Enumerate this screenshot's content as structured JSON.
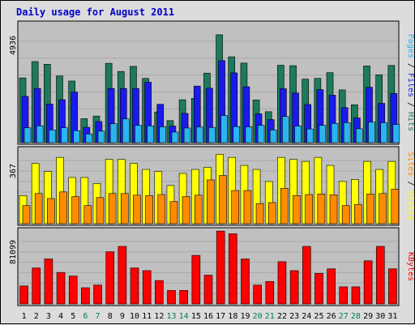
{
  "title": "Daily usage for August 2011",
  "colors": {
    "background": "#c0c0c0",
    "title": "#0000cc",
    "hits": "#1d7a5a",
    "files": "#1a1aee",
    "pages": "#2ab4f0",
    "visits": "#ffff00",
    "sites": "#ff8c00",
    "kbytes": "#ff0000",
    "weekday": "#000000",
    "weekend": "#00805a"
  },
  "chart_data": [
    {
      "type": "bar",
      "name": "hits-files-pages",
      "ymax_label": "4936",
      "ylim": [
        0,
        4936
      ],
      "categories": [
        "1",
        "2",
        "3",
        "4",
        "5",
        "6",
        "7",
        "8",
        "9",
        "10",
        "11",
        "12",
        "13",
        "14",
        "15",
        "16",
        "17",
        "18",
        "19",
        "20",
        "21",
        "22",
        "23",
        "24",
        "25",
        "26",
        "27",
        "28",
        "29",
        "30",
        "31"
      ],
      "weekend_days": [
        "6",
        "7",
        "13",
        "14",
        "20",
        "21",
        "27",
        "28"
      ],
      "series": [
        {
          "name": "Hits",
          "values": [
            2700,
            3380,
            3270,
            2780,
            2570,
            1000,
            1110,
            3310,
            2970,
            3180,
            2680,
            1280,
            920,
            1790,
            1850,
            2900,
            4500,
            3580,
            3320,
            1780,
            1290,
            3230,
            3210,
            2650,
            2680,
            2920,
            2200,
            1580,
            3200,
            2830,
            3220
          ]
        },
        {
          "name": "Files",
          "values": [
            1930,
            2260,
            1610,
            1790,
            2110,
            640,
            880,
            2260,
            2260,
            2260,
            2520,
            1600,
            690,
            1220,
            2360,
            2270,
            3420,
            2910,
            2330,
            1200,
            960,
            2250,
            2070,
            1590,
            2210,
            1980,
            1460,
            1030,
            2310,
            1640,
            2050
          ]
        },
        {
          "name": "Pages",
          "values": [
            620,
            700,
            530,
            620,
            500,
            360,
            480,
            790,
            990,
            720,
            700,
            660,
            440,
            610,
            650,
            630,
            1130,
            670,
            660,
            720,
            530,
            1090,
            690,
            570,
            720,
            800,
            830,
            580,
            860,
            830,
            760
          ]
        }
      ],
      "side_labels": [
        "Pages",
        "Files",
        "Hits"
      ]
    },
    {
      "type": "bar",
      "name": "visits-sites",
      "ymax_label": "367",
      "ylim": [
        0,
        367
      ],
      "categories": [
        "1",
        "2",
        "3",
        "4",
        "5",
        "6",
        "7",
        "8",
        "9",
        "10",
        "11",
        "12",
        "13",
        "14",
        "15",
        "16",
        "17",
        "18",
        "19",
        "20",
        "21",
        "22",
        "23",
        "24",
        "25",
        "26",
        "27",
        "28",
        "29",
        "30",
        "31"
      ],
      "series": [
        {
          "name": "Visits",
          "values": [
            140,
            300,
            260,
            330,
            230,
            230,
            200,
            320,
            320,
            300,
            270,
            260,
            190,
            250,
            270,
            280,
            345,
            330,
            290,
            270,
            210,
            330,
            320,
            310,
            330,
            290,
            210,
            220,
            310,
            270,
            310
          ]
        },
        {
          "name": "Sites",
          "values": [
            90,
            150,
            125,
            158,
            135,
            90,
            130,
            150,
            150,
            142,
            140,
            145,
            110,
            135,
            142,
            218,
            240,
            165,
            165,
            100,
            105,
            176,
            140,
            145,
            148,
            144,
            90,
            96,
            148,
            150,
            172
          ]
        }
      ],
      "side_labels": [
        "Sites",
        "Visits"
      ]
    },
    {
      "type": "bar",
      "name": "kbytes",
      "ymax_label": "81099",
      "ylim": [
        0,
        81099
      ],
      "categories": [
        "1",
        "2",
        "3",
        "4",
        "5",
        "6",
        "7",
        "8",
        "9",
        "10",
        "11",
        "12",
        "13",
        "14",
        "15",
        "16",
        "17",
        "18",
        "19",
        "20",
        "21",
        "22",
        "23",
        "24",
        "25",
        "26",
        "27",
        "28",
        "29",
        "30",
        "31"
      ],
      "series": [
        {
          "name": "KBytes",
          "values": [
            20000,
            40000,
            50000,
            35000,
            31000,
            18000,
            21000,
            58000,
            64000,
            40000,
            37000,
            26000,
            15000,
            15000,
            54000,
            32000,
            81000,
            78000,
            50000,
            21000,
            25000,
            47000,
            37000,
            64000,
            34000,
            39000,
            19000,
            19000,
            48000,
            64000,
            39000
          ]
        }
      ],
      "side_labels": [
        "KBytes"
      ]
    }
  ]
}
